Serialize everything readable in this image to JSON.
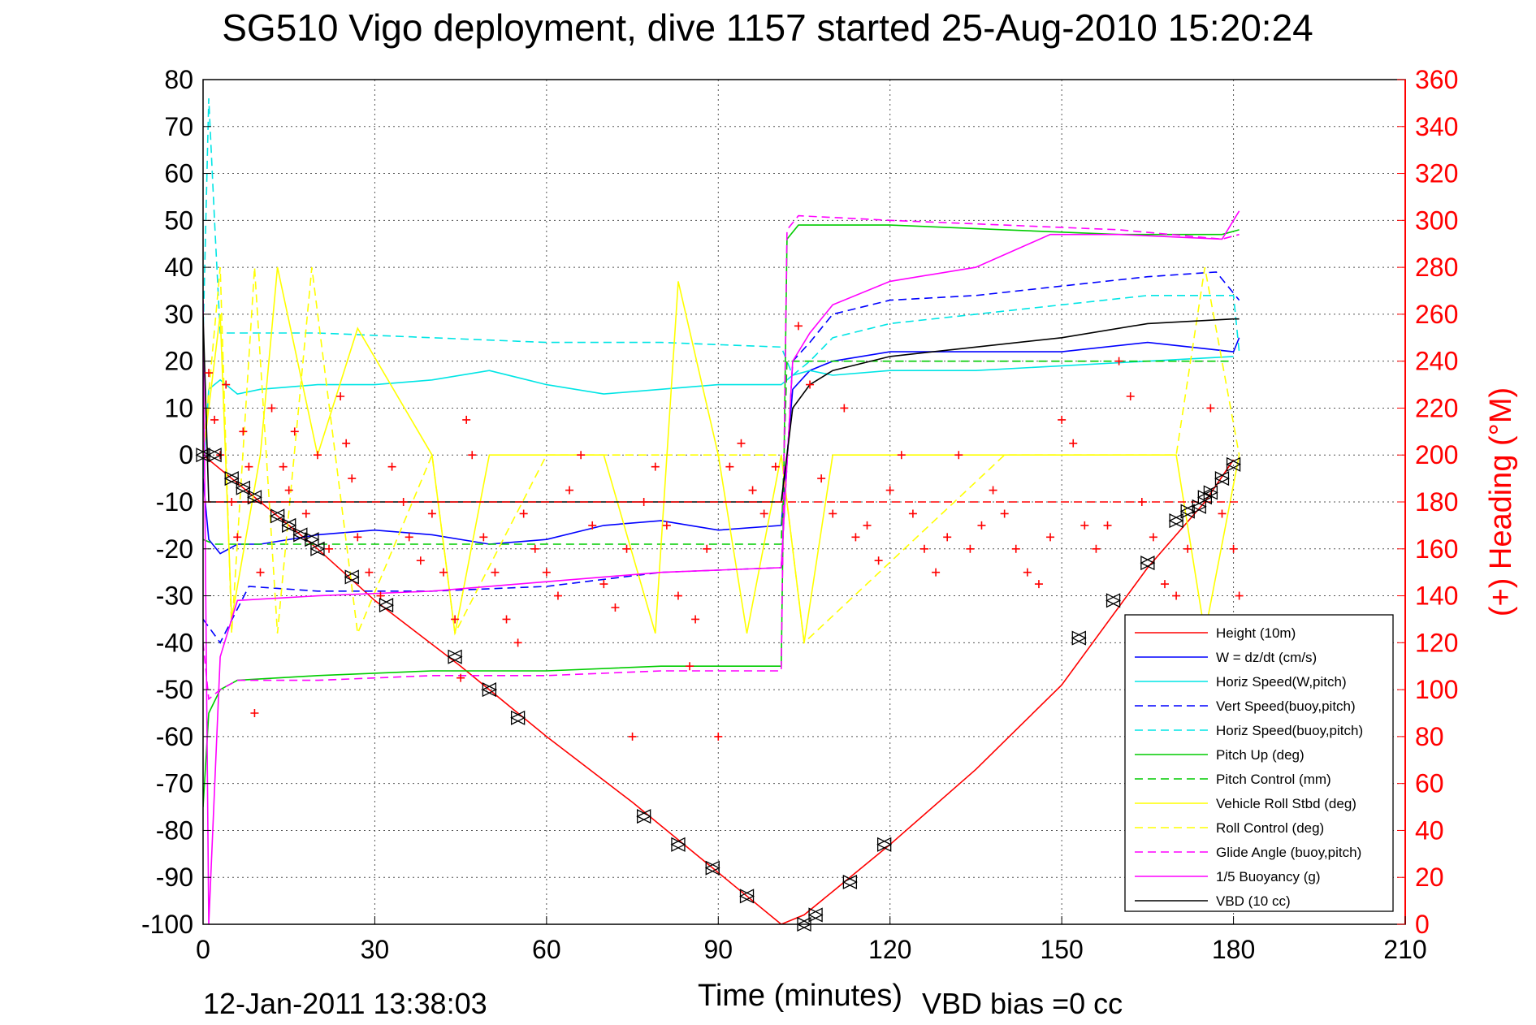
{
  "chart_data": {
    "type": "line",
    "title": "SG510 Vigo deployment, dive 1157 started 25-Aug-2010 15:20:24",
    "xlabel": "Time (minutes)",
    "ylabel_right": "(+) Heading (°M)",
    "xlim": [
      0,
      210
    ],
    "ylim": [
      -100,
      80
    ],
    "ylim_right": [
      0,
      360
    ],
    "x_ticks": [
      0,
      30,
      60,
      90,
      120,
      150,
      180,
      210
    ],
    "y_ticks": [
      -100,
      -90,
      -80,
      -70,
      -60,
      -50,
      -40,
      -30,
      -20,
      -10,
      0,
      10,
      20,
      30,
      40,
      50,
      60,
      70,
      80
    ],
    "y_ticks_right": [
      0,
      20,
      40,
      60,
      80,
      100,
      120,
      140,
      160,
      180,
      200,
      220,
      240,
      260,
      280,
      300,
      320,
      340,
      360
    ],
    "grid": true,
    "legend_position": "lower-right",
    "footer_left": "12-Jan-2011 13:38:03",
    "footer_right": "VBD bias =0 cc",
    "series": [
      {
        "name": "Height (10m)",
        "color": "#ff0000",
        "style": "solid",
        "x": [
          0,
          10,
          20,
          30,
          45,
          60,
          75,
          90,
          101,
          105,
          110,
          120,
          135,
          150,
          165,
          175,
          180
        ],
        "y": [
          0,
          -10,
          -20,
          -31,
          -45,
          -60,
          -74,
          -89,
          -100,
          -98,
          -93,
          -83,
          -67,
          -49,
          -24,
          -10,
          -1
        ]
      },
      {
        "name": "W = dz/dt (cm/s)",
        "color": "#0000ff",
        "style": "solid",
        "x": [
          0,
          1,
          3,
          6,
          10,
          20,
          30,
          40,
          50,
          60,
          70,
          80,
          90,
          101,
          103,
          106,
          110,
          120,
          135,
          150,
          165,
          180,
          181
        ],
        "y": [
          -5,
          -18,
          -21,
          -19,
          -19,
          -17,
          -16,
          -17,
          -19,
          -18,
          -15,
          -14,
          -16,
          -15,
          14,
          18,
          20,
          22,
          22,
          22,
          24,
          22,
          25
        ]
      },
      {
        "name": "Horiz Speed(W,pitch)",
        "color": "#00e5e5",
        "style": "solid",
        "x": [
          0,
          1,
          3,
          6,
          10,
          20,
          30,
          40,
          50,
          60,
          70,
          80,
          90,
          101,
          103,
          106,
          110,
          120,
          135,
          150,
          165,
          180
        ],
        "y": [
          -5,
          14,
          16,
          13,
          14,
          15,
          15,
          16,
          18,
          15,
          13,
          14,
          15,
          15,
          17,
          18,
          17,
          18,
          18,
          19,
          20,
          21
        ]
      },
      {
        "name": "Vert Speed(buoy,pitch)",
        "color": "#0000ff",
        "style": "dashed",
        "x": [
          0,
          3,
          8,
          20,
          40,
          60,
          80,
          101,
          103,
          106,
          110,
          120,
          135,
          150,
          165,
          177,
          181
        ],
        "y": [
          -35,
          -40,
          -28,
          -29,
          -29,
          -28,
          -25,
          -24,
          20,
          24,
          30,
          33,
          34,
          36,
          38,
          39,
          33
        ]
      },
      {
        "name": "Horiz Speed(buoy,pitch)",
        "color": "#00e5e5",
        "style": "dashed",
        "x": [
          0,
          1,
          2,
          3,
          6,
          20,
          40,
          60,
          80,
          101,
          103,
          106,
          110,
          120,
          135,
          150,
          165,
          180,
          181
        ],
        "y": [
          25,
          76,
          50,
          26,
          26,
          26,
          25,
          24,
          24,
          23,
          17,
          20,
          25,
          28,
          30,
          32,
          34,
          34,
          22
        ]
      },
      {
        "name": "Pitch Up (deg)",
        "color": "#00cc00",
        "style": "solid",
        "x": [
          0,
          1,
          3,
          6,
          20,
          40,
          60,
          80,
          101,
          102,
          104,
          120,
          140,
          160,
          178,
          181
        ],
        "y": [
          -75,
          -55,
          -50,
          -48,
          -47,
          -46,
          -46,
          -45,
          -45,
          46,
          49,
          49,
          48,
          47,
          47,
          48
        ]
      },
      {
        "name": "Pitch Control (mm)",
        "color": "#00cc00",
        "style": "dashed",
        "x": [
          0,
          2,
          101,
          102,
          180
        ],
        "y": [
          -18,
          -19,
          -19,
          20,
          20
        ]
      },
      {
        "name": "Vehicle Roll Stbd (deg)",
        "color": "#ffff00",
        "style": "solid",
        "x": [
          0,
          3,
          5,
          10,
          13,
          20,
          27,
          40,
          44,
          50,
          60,
          70,
          79,
          83,
          90,
          95,
          101,
          105,
          110,
          120,
          140,
          160,
          170,
          175,
          181
        ],
        "y": [
          0,
          30,
          -35,
          0,
          40,
          0,
          27,
          0,
          -38,
          0,
          0,
          0,
          -38,
          37,
          0,
          -38,
          0,
          -40,
          0,
          0,
          0,
          0,
          0,
          -38,
          0
        ]
      },
      {
        "name": "Roll Control (deg)",
        "color": "#ffff00",
        "style": "dashed",
        "x": [
          0,
          3,
          5,
          9,
          13,
          19,
          27,
          40,
          44,
          60,
          80,
          101,
          105,
          140,
          170,
          175,
          181
        ],
        "y": [
          0,
          40,
          -38,
          40,
          -38,
          40,
          -38,
          0,
          -38,
          0,
          0,
          0,
          -40,
          0,
          0,
          40,
          0
        ]
      },
      {
        "name": "Glide Angle (buoy,pitch)",
        "color": "#ff00ff",
        "style": "dashed",
        "x": [
          0,
          1,
          3,
          6,
          20,
          40,
          60,
          80,
          101,
          102,
          104,
          120,
          140,
          160,
          178,
          181
        ],
        "y": [
          -40,
          -52,
          -50,
          -48,
          -48,
          -47,
          -47,
          -46,
          -46,
          48,
          51,
          50,
          49,
          48,
          46,
          47
        ]
      },
      {
        "name": "1/5 Buoyancy (g)",
        "color": "#ff00ff",
        "style": "solid",
        "x": [
          0,
          1,
          3,
          6,
          20,
          40,
          60,
          80,
          101,
          103,
          106,
          110,
          120,
          135,
          148,
          160,
          178,
          181
        ],
        "y": [
          33,
          -100,
          -43,
          -31,
          -30,
          -29,
          -27,
          -25,
          -24,
          20,
          26,
          32,
          37,
          40,
          47,
          47,
          46,
          52
        ]
      },
      {
        "name": "VBD (10 cc)",
        "color": "#000000",
        "style": "solid",
        "x": [
          0,
          1,
          3,
          6,
          20,
          40,
          60,
          80,
          101,
          103,
          106,
          110,
          120,
          135,
          150,
          165,
          180,
          181
        ],
        "y": [
          30,
          -10,
          -10,
          -10,
          -10,
          -10,
          -10,
          -10,
          -10,
          10,
          15,
          18,
          21,
          23,
          25,
          28,
          29,
          29
        ]
      }
    ],
    "heading_mean_deg": 180,
    "heading_points": {
      "x": [
        1,
        2,
        3,
        4,
        5,
        6,
        7,
        8,
        9,
        10,
        12,
        14,
        15,
        16,
        18,
        20,
        22,
        24,
        25,
        26,
        27,
        29,
        31,
        33,
        35,
        36,
        38,
        40,
        42,
        44,
        45,
        46,
        47,
        49,
        51,
        53,
        55,
        56,
        58,
        60,
        62,
        64,
        66,
        68,
        70,
        72,
        74,
        75,
        77,
        79,
        81,
        83,
        85,
        86,
        88,
        90,
        92,
        94,
        96,
        98,
        100,
        104,
        106,
        108,
        110,
        112,
        114,
        116,
        118,
        120,
        122,
        124,
        126,
        128,
        130,
        132,
        134,
        136,
        138,
        140,
        142,
        144,
        146,
        148,
        150,
        152,
        154,
        156,
        158,
        160,
        162,
        164,
        166,
        168,
        170,
        172,
        174,
        176,
        178,
        180,
        181
      ],
      "y": [
        235,
        215,
        200,
        230,
        180,
        165,
        210,
        195,
        90,
        150,
        220,
        195,
        185,
        210,
        175,
        200,
        160,
        225,
        205,
        190,
        165,
        150,
        140,
        195,
        180,
        165,
        155,
        175,
        150,
        130,
        105,
        215,
        200,
        165,
        150,
        130,
        120,
        175,
        160,
        150,
        140,
        185,
        200,
        170,
        145,
        135,
        160,
        80,
        180,
        195,
        170,
        140,
        110,
        130,
        160,
        80,
        195,
        205,
        185,
        175,
        195,
        255,
        230,
        190,
        175,
        220,
        165,
        170,
        155,
        185,
        200,
        175,
        160,
        150,
        165,
        200,
        160,
        170,
        185,
        175,
        160,
        150,
        145,
        165,
        215,
        205,
        170,
        160,
        170,
        240,
        225,
        180,
        165,
        145,
        140,
        160,
        130,
        220,
        175,
        160,
        140
      ]
    },
    "markers": {
      "x": [
        0,
        2,
        5,
        7,
        9,
        13,
        15,
        17,
        19,
        20,
        26,
        32,
        44,
        50,
        55,
        77,
        83,
        89,
        95,
        105,
        107,
        113,
        119,
        153,
        159,
        165,
        170,
        172,
        174,
        175,
        176,
        178,
        180
      ],
      "y": [
        0,
        0,
        -5,
        -7,
        -9,
        -13,
        -15,
        -17,
        -18,
        -20,
        -26,
        -32,
        -43,
        -50,
        -56,
        -77,
        -83,
        -88,
        -94,
        -100,
        -98,
        -91,
        -83,
        -39,
        -31,
        -23,
        -14,
        -12,
        -11,
        -9,
        -8,
        -5,
        -2
      ]
    }
  }
}
